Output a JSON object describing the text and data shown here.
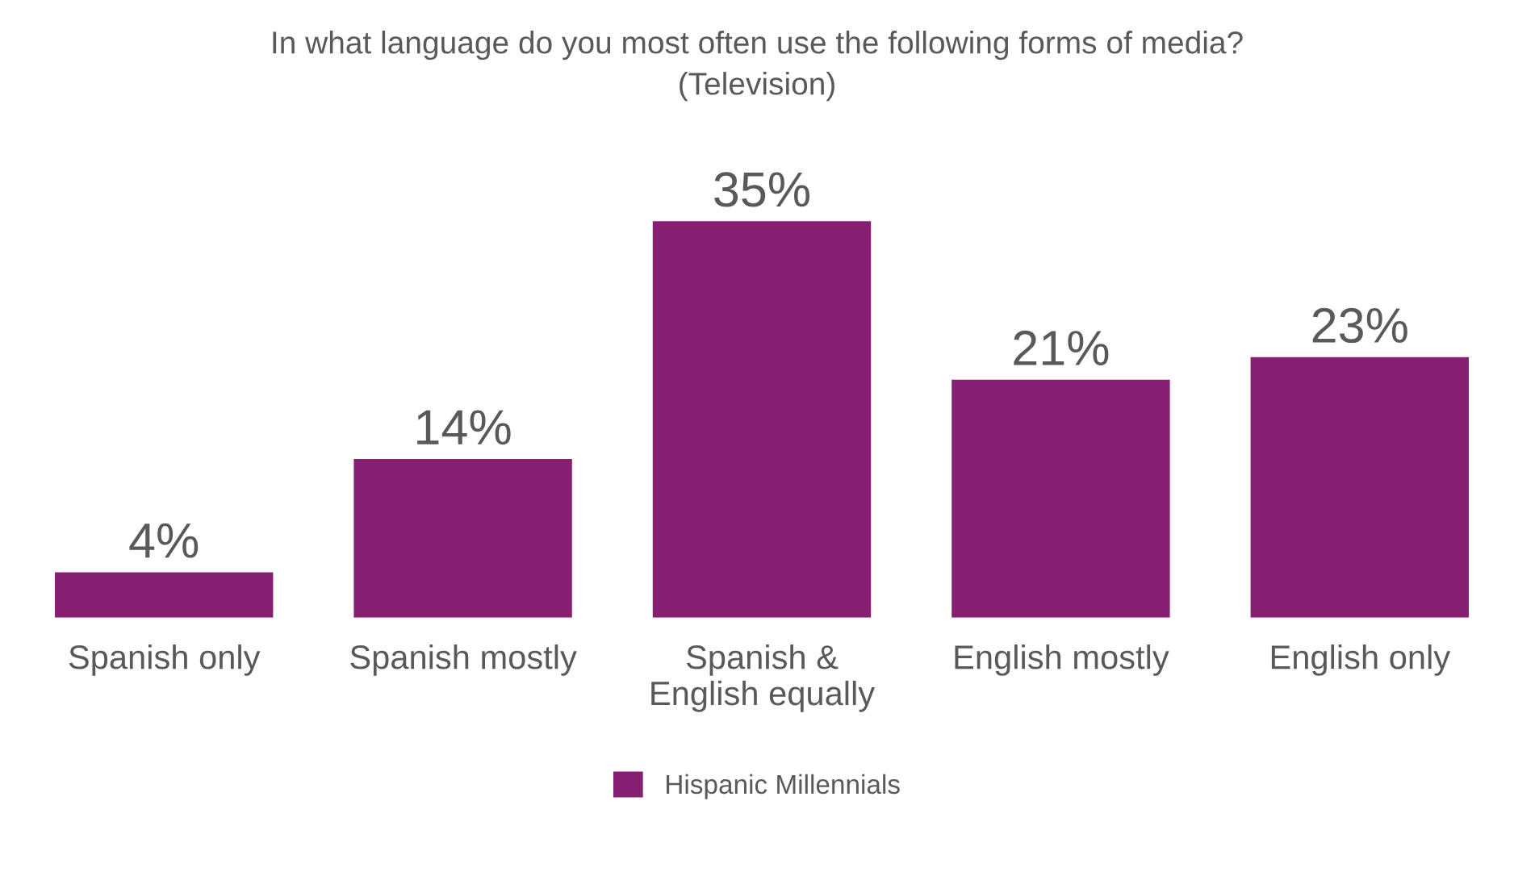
{
  "chart_data": {
    "type": "bar",
    "title": "In what language do you most often use the following forms of media?",
    "subtitle": "(Television)",
    "categories": [
      "Spanish only",
      "Spanish mostly",
      "Spanish &\nEnglish equally",
      "English mostly",
      "English only"
    ],
    "series": [
      {
        "name": "Hispanic Millennials",
        "color": "#861f72",
        "values": [
          4,
          14,
          35,
          21,
          23
        ],
        "value_labels": [
          "4%",
          "14%",
          "35%",
          "21%",
          "23%"
        ]
      }
    ],
    "grid": false,
    "legend": "bottom"
  }
}
